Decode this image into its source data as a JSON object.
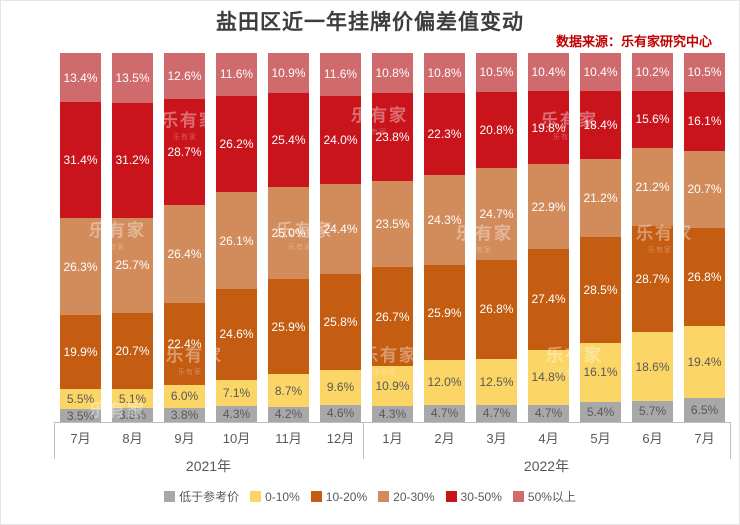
{
  "header": {
    "title": "盐田区近一年挂牌价偏差值变动",
    "source": "数据来源：乐有家研究中心"
  },
  "watermark": {
    "text": "乐有家"
  },
  "chart_data": {
    "type": "bar",
    "subtype": "stacked-percent-column",
    "title": "盐田区近一年挂牌价偏差值变动",
    "xlabel": "",
    "ylabel": "",
    "ylim": [
      0,
      100
    ],
    "grid": false,
    "legend_position": "bottom",
    "categories": [
      "7月",
      "8月",
      "9月",
      "10月",
      "11月",
      "12月",
      "1月",
      "2月",
      "3月",
      "4月",
      "5月",
      "6月",
      "7月"
    ],
    "year_groups": [
      {
        "label": "2021年",
        "span": 6
      },
      {
        "label": "2022年",
        "span": 7
      }
    ],
    "series": [
      {
        "name": "低于参考价",
        "color": "#a8a8a8",
        "label_color": "#595959",
        "values": [
          3.5,
          3.8,
          3.8,
          4.3,
          4.2,
          4.6,
          4.3,
          4.7,
          4.7,
          4.7,
          5.4,
          5.7,
          6.5
        ]
      },
      {
        "name": "0-10%",
        "color": "#fbd565",
        "label_color": "#595959",
        "values": [
          5.5,
          5.1,
          6.0,
          7.1,
          8.7,
          9.6,
          10.9,
          12.0,
          12.5,
          14.8,
          16.1,
          18.6,
          19.4
        ]
      },
      {
        "name": "10-20%",
        "color": "#c45c12",
        "label_color": "#ffffff",
        "values": [
          19.9,
          20.7,
          22.4,
          24.6,
          25.9,
          25.8,
          26.7,
          25.9,
          26.8,
          27.4,
          28.5,
          28.7,
          26.8
        ]
      },
      {
        "name": "20-30%",
        "color": "#d28b5b",
        "label_color": "#ffffff",
        "values": [
          26.3,
          25.7,
          26.4,
          26.1,
          25.0,
          24.4,
          23.5,
          24.3,
          24.7,
          22.9,
          21.2,
          21.2,
          20.7
        ]
      },
      {
        "name": "30-50%",
        "color": "#c9141c",
        "label_color": "#ffffff",
        "values": [
          31.4,
          31.2,
          28.7,
          26.2,
          25.4,
          24.0,
          23.8,
          22.3,
          20.8,
          19.8,
          18.4,
          15.6,
          16.1
        ]
      },
      {
        "name": "50%以上",
        "color": "#cf6a6d",
        "label_color": "#ffffff",
        "values": [
          13.4,
          13.5,
          12.6,
          11.6,
          10.9,
          11.6,
          10.8,
          10.8,
          10.5,
          10.4,
          10.4,
          10.2,
          10.5
        ]
      }
    ]
  }
}
